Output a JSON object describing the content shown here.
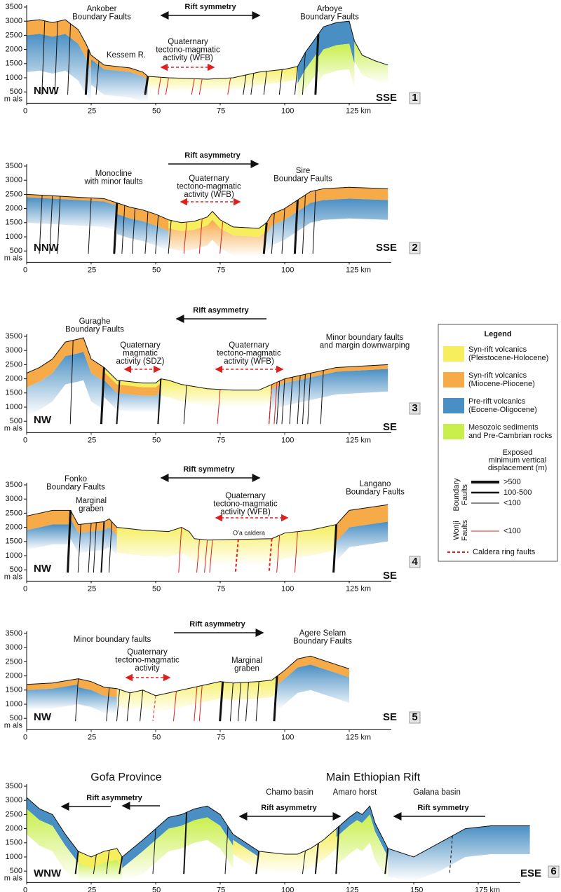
{
  "panels": [
    {
      "number": "1",
      "left": "NNW",
      "right": "SSE",
      "yunit": "m als",
      "yticks": [
        "500",
        "1000",
        "1500",
        "2000",
        "2500",
        "3000",
        "3500"
      ],
      "xticks": [
        "0",
        "25",
        "50",
        "75",
        "100",
        "125 km"
      ],
      "arrows": [
        "Rift symmetry"
      ],
      "annotations": [
        [
          "Ankober",
          "Boundary Faults"
        ],
        [
          "Arboye",
          "Boundary Faults"
        ],
        [
          "Kessem R."
        ],
        [
          "Quaternary",
          "tectono-magmatic",
          "activity (WFB)"
        ]
      ]
    },
    {
      "number": "2",
      "left": "NNW",
      "right": "SSE",
      "yunit": "m als",
      "yticks": [
        "500",
        "1000",
        "1500",
        "2000",
        "2500",
        "3000",
        "3500"
      ],
      "xticks": [
        "0",
        "25",
        "50",
        "75",
        "100",
        "125 km"
      ],
      "arrows": [
        "Rift asymmetry"
      ],
      "annotations": [
        [
          "Monocline",
          "with minor faults"
        ],
        [
          "Quaternary",
          "tectono-magmatic",
          "activity (WFB)"
        ],
        [
          "Sire",
          "Boundary Faults"
        ]
      ]
    },
    {
      "number": "3",
      "left": "NW",
      "right": "SE",
      "yunit": "m als",
      "yticks": [
        "500",
        "1000",
        "1500",
        "2000",
        "2500",
        "3000",
        "3500"
      ],
      "xticks": [
        "0",
        "25",
        "50",
        "75",
        "100",
        "125 km"
      ],
      "arrows": [
        "Rift asymmetry"
      ],
      "annotations": [
        [
          "Guraghe",
          "Boundary Faults"
        ],
        [
          "Quaternary",
          "magmatic",
          "activity (SDZ)"
        ],
        [
          "Quaternary",
          "tectono-magmatic",
          "activity (WFB)"
        ],
        [
          "Minor boundary faults",
          "and margin downwarping"
        ]
      ]
    },
    {
      "number": "4",
      "left": "NW",
      "right": "SE",
      "yunit": "m als",
      "yticks": [
        "500",
        "1000",
        "1500",
        "2000",
        "2500",
        "3000",
        "3500"
      ],
      "xticks": [
        "0",
        "25",
        "50",
        "75",
        "100",
        "125 km"
      ],
      "arrows": [
        "Rift symmetry"
      ],
      "annotations": [
        [
          "Fonko",
          "Boundary Faults"
        ],
        [
          "Marginal",
          "graben"
        ],
        [
          "Quaternary",
          "tectono-magmatic",
          "activity (WFB)"
        ],
        [
          "O'a caldera"
        ],
        [
          "Langano",
          "Boundary Faults"
        ]
      ]
    },
    {
      "number": "5",
      "left": "NW",
      "right": "SE",
      "yunit": "m als",
      "yticks": [
        "500",
        "1000",
        "1500",
        "2000",
        "2500",
        "3000",
        "3500"
      ],
      "xticks": [
        "0",
        "25",
        "50",
        "75",
        "100",
        "125 km"
      ],
      "arrows": [
        "Rift asymmetry"
      ],
      "annotations": [
        [
          "Minor boundary faults"
        ],
        [
          "Quaternary",
          "tectono-magmatic",
          "activity"
        ],
        [
          "Marginal",
          "graben"
        ],
        [
          "Agere Selam",
          "Boundary Faults"
        ]
      ]
    },
    {
      "number": "6",
      "left": "WNW",
      "right": "ESE",
      "yunit": "m als",
      "yticks": [
        "500",
        "1000",
        "1500",
        "2000",
        "2500",
        "3000",
        "3500"
      ],
      "xticks": [
        "0",
        "25",
        "50",
        "75",
        "100",
        "125",
        "150",
        "175 km"
      ],
      "arrows": [
        "Rift asymmetry",
        "Rift symmetry",
        "Rift asymmetry"
      ],
      "annotations": [
        [
          "Gofa Province"
        ],
        [
          "Main Ethiopian Rift"
        ],
        [
          "Chamo basin"
        ],
        [
          "Amaro horst"
        ],
        [
          "Galana basin"
        ]
      ]
    }
  ],
  "legend": {
    "title": "Legend",
    "units": [
      [
        "Syn-rift volcanics",
        "(Pleistocene-Holocene)"
      ],
      [
        "Syn-rift volcanics",
        "(Miocene-Pliocene)"
      ],
      [
        "Pre-rift volcanics",
        "(Eocene-Oligocene)"
      ],
      [
        "Mesozoic sediments",
        "and Pre-Cambrian rocks"
      ]
    ],
    "displacement_title": [
      "Exposed",
      "minimum vertical",
      "displacement (m)"
    ],
    "boundary_group": [
      "Boundary",
      "Faults"
    ],
    "boundary_classes": [
      ">500",
      "100-500",
      "<100"
    ],
    "wonji_group": [
      "Wonji",
      "Faults"
    ],
    "wonji_classes": [
      "<100"
    ],
    "caldera": "Caldera ring faults"
  }
}
